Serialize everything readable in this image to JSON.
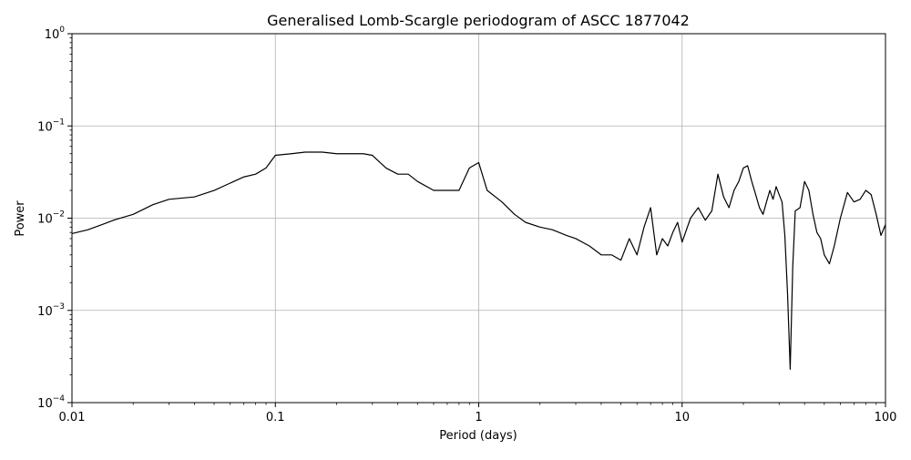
{
  "chart_data": {
    "type": "line",
    "title": "Generalised Lomb-Scargle periodogram of ASCC 1877042",
    "xlabel": "Period (days)",
    "ylabel": "Power",
    "xscale": "log",
    "yscale": "log",
    "xlim": [
      0.01,
      100
    ],
    "ylim": [
      0.0001,
      1
    ],
    "grid": true,
    "line_color": "#000000",
    "x_ticks": [
      {
        "value": 0.01,
        "label": "0.01"
      },
      {
        "value": 0.1,
        "label": "0.1"
      },
      {
        "value": 1,
        "label": "1"
      },
      {
        "value": 10,
        "label": "10"
      },
      {
        "value": 100,
        "label": "100"
      }
    ],
    "y_ticks": [
      {
        "value": 1,
        "base": "10",
        "exp": "0"
      },
      {
        "value": 0.1,
        "base": "10",
        "exp": "−1"
      },
      {
        "value": 0.01,
        "base": "10",
        "exp": "−2"
      },
      {
        "value": 0.001,
        "base": "10",
        "exp": "−3"
      },
      {
        "value": 0.0001,
        "base": "10",
        "exp": "−4"
      }
    ],
    "series": [
      {
        "x": [
          0.01,
          0.012,
          0.014,
          0.016,
          0.02,
          0.025,
          0.03,
          0.04,
          0.05,
          0.06,
          0.07,
          0.08,
          0.09,
          0.1,
          0.12,
          0.14,
          0.17,
          0.2,
          0.23,
          0.27,
          0.3,
          0.35,
          0.4,
          0.45,
          0.5,
          0.6,
          0.7,
          0.8,
          0.9,
          1.0,
          1.1,
          1.3,
          1.5,
          1.7,
          2.0,
          2.3,
          2.7,
          3.0,
          3.5,
          4.0,
          4.5,
          5.0,
          5.5,
          6.0,
          6.5,
          7.0,
          7.5,
          8.0,
          8.5,
          9.0,
          9.5,
          10.0,
          11.0,
          12.0,
          13.0,
          14.0,
          15.0,
          16.0,
          17.0,
          18.0,
          19.0,
          20.0,
          21.0,
          22.0,
          23.0,
          24.0,
          25.0,
          26.0,
          27.0,
          28.0,
          29.0,
          30.0,
          31.0,
          32.0,
          33.0,
          34.0,
          35.0,
          36.0,
          38.0,
          40.0,
          42.0,
          44.0,
          46.0,
          48.0,
          50.0,
          53.0,
          56.0,
          60.0,
          65.0,
          70.0,
          75.0,
          80.0,
          85.0,
          90.0,
          95.0,
          100.0
        ],
        "y": [
          0.0068,
          0.0075,
          0.0085,
          0.0095,
          0.011,
          0.014,
          0.016,
          0.017,
          0.02,
          0.024,
          0.028,
          0.03,
          0.035,
          0.048,
          0.05,
          0.052,
          0.052,
          0.05,
          0.05,
          0.05,
          0.048,
          0.035,
          0.03,
          0.03,
          0.025,
          0.02,
          0.02,
          0.02,
          0.035,
          0.04,
          0.02,
          0.015,
          0.011,
          0.009,
          0.008,
          0.0075,
          0.0065,
          0.006,
          0.005,
          0.004,
          0.004,
          0.0035,
          0.006,
          0.004,
          0.008,
          0.013,
          0.004,
          0.006,
          0.005,
          0.007,
          0.009,
          0.0055,
          0.01,
          0.013,
          0.0095,
          0.012,
          0.03,
          0.017,
          0.013,
          0.02,
          0.025,
          0.035,
          0.037,
          0.025,
          0.018,
          0.013,
          0.011,
          0.015,
          0.02,
          0.016,
          0.022,
          0.018,
          0.015,
          0.0065,
          0.0015,
          0.00023,
          0.003,
          0.012,
          0.013,
          0.025,
          0.02,
          0.011,
          0.007,
          0.006,
          0.004,
          0.0032,
          0.005,
          0.01,
          0.019,
          0.015,
          0.016,
          0.02,
          0.018,
          0.011,
          0.0065,
          0.0085
        ]
      }
    ]
  }
}
